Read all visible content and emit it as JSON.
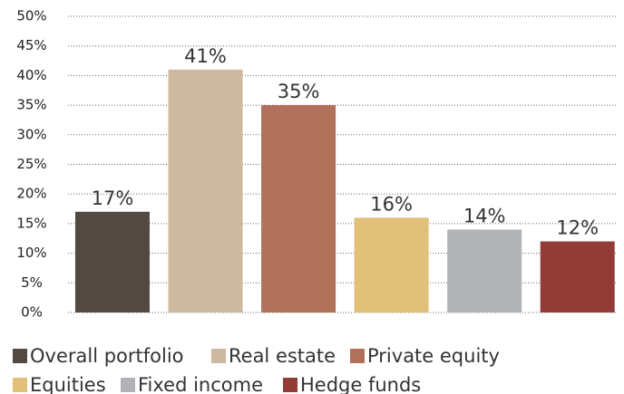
{
  "chart_data": {
    "type": "bar",
    "categories": [
      "Overall portfolio",
      "Real estate",
      "Private equity",
      "Equities",
      "Fixed income",
      "Hedge funds"
    ],
    "values": [
      17,
      41,
      35,
      16,
      14,
      12
    ],
    "value_labels": [
      "17%",
      "41%",
      "35%",
      "16%",
      "14%",
      "12%"
    ],
    "colors": [
      "#524a42",
      "#cdb8a0",
      "#b07059",
      "#e1c07a",
      "#b2b3b6",
      "#933c37"
    ],
    "ylim": [
      0,
      50
    ],
    "yticks": [
      {
        "value": 0,
        "label": "0%"
      },
      {
        "value": 5,
        "label": "5%"
      },
      {
        "value": 10,
        "label": "10%"
      },
      {
        "value": 15,
        "label": "15%"
      },
      {
        "value": 20,
        "label": "20%"
      },
      {
        "value": 25,
        "label": "25%"
      },
      {
        "value": 30,
        "label": "30%"
      },
      {
        "value": 35,
        "label": "35%"
      },
      {
        "value": 40,
        "label": "40%"
      },
      {
        "value": 45,
        "label": "45%"
      },
      {
        "value": 50,
        "label": "50%"
      }
    ],
    "grid": true
  }
}
